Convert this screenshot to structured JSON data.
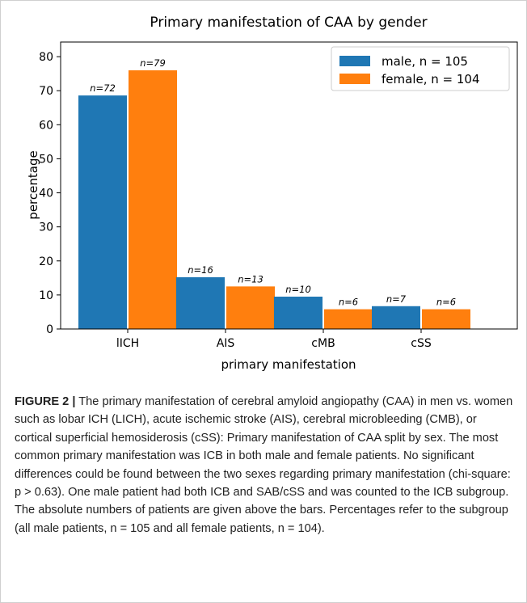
{
  "chart_data": {
    "type": "bar",
    "title": "Primary manifestation of CAA by gender",
    "x_label": "primary manifestation",
    "y_label": "percentage",
    "categories": [
      "lICH",
      "AIS",
      "cMB",
      "cSS"
    ],
    "series": [
      {
        "name": "male, n = 105",
        "color": "#1f77b4",
        "values": [
          68.6,
          15.2,
          9.5,
          6.7
        ],
        "count_labels": [
          "n=72",
          "n=16",
          "n=10",
          "n=7"
        ]
      },
      {
        "name": "female, n = 104",
        "color": "#ff7f0e",
        "values": [
          76.0,
          12.5,
          5.8,
          5.8
        ],
        "count_labels": [
          "n=79",
          "n=13",
          "n=6",
          "n=6"
        ]
      }
    ],
    "ylim": [
      0,
      84.3
    ],
    "yticks": [
      0,
      10,
      20,
      30,
      40,
      50,
      60,
      70,
      80
    ],
    "legend": "upper right"
  },
  "caption": {
    "label": "FIGURE 2 |",
    "text": "The primary manifestation of cerebral amyloid angiopathy (CAA) in men vs. women such as lobar ICH (LICH), acute ischemic stroke (AIS), cerebral microbleeding (CMB), or cortical superficial hemosiderosis (cSS): Primary manifestation of CAA split by sex. The most common primary manifestation was ICB in both male and female patients. No significant differences could be found between the two sexes regarding primary manifestation (chi-square: p > 0.63). One male patient had both ICB and SAB/cSS and was counted to the ICB subgroup. The absolute numbers of patients are given above the bars. Percentages refer to the subgroup (all male patients, n = 105 and all female patients, n = 104)."
  }
}
